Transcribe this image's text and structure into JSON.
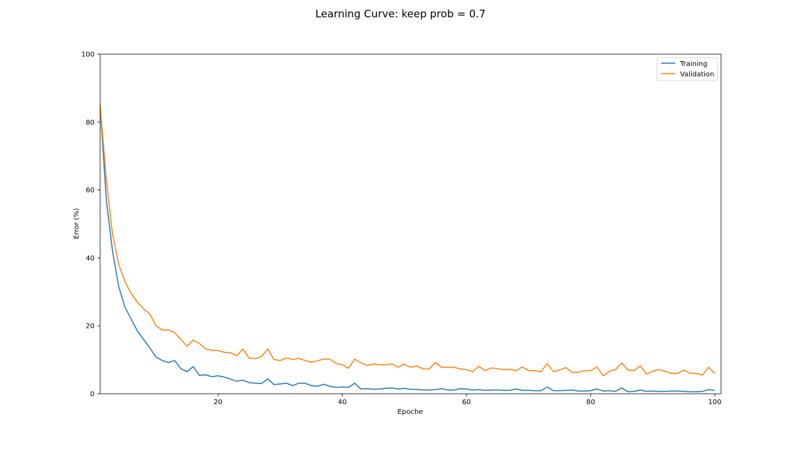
{
  "chart_data": {
    "type": "line",
    "title": "Learning Curve: keep prob = 0.7",
    "xlabel": "Epoche",
    "ylabel": "Error (%)",
    "xlim": [
      1,
      101
    ],
    "ylim": [
      0,
      100
    ],
    "xticks": [
      20,
      40,
      60,
      80,
      100
    ],
    "yticks": [
      0,
      20,
      40,
      60,
      80,
      100
    ],
    "grid": false,
    "legend_position": "top-right",
    "x_start": 1,
    "series": [
      {
        "name": "Training",
        "color": "#1f77b4",
        "values": [
          85.0,
          57.0,
          42.0,
          31.5,
          25.5,
          22.0,
          18.5,
          16.0,
          13.5,
          10.8,
          9.8,
          9.2,
          9.8,
          7.4,
          6.5,
          8.0,
          5.4,
          5.6,
          5.0,
          5.3,
          4.9,
          4.3,
          3.7,
          4.0,
          3.3,
          3.1,
          3.0,
          4.4,
          2.7,
          2.9,
          3.1,
          2.4,
          3.1,
          3.1,
          2.4,
          2.2,
          2.8,
          2.2,
          1.9,
          2.0,
          1.9,
          3.1,
          1.4,
          1.5,
          1.3,
          1.4,
          1.6,
          1.7,
          1.4,
          1.6,
          1.3,
          1.3,
          1.1,
          1.1,
          1.2,
          1.5,
          1.1,
          1.1,
          1.5,
          1.4,
          1.1,
          1.2,
          1.0,
          1.1,
          1.1,
          1.0,
          1.0,
          1.4,
          1.0,
          1.0,
          0.9,
          0.9,
          2.0,
          0.9,
          0.9,
          1.0,
          1.1,
          0.8,
          0.8,
          0.9,
          1.4,
          0.8,
          0.9,
          0.7,
          1.7,
          0.6,
          0.7,
          1.1,
          0.7,
          0.8,
          0.7,
          0.7,
          0.8,
          0.8,
          0.7,
          0.6,
          0.6,
          0.7,
          1.2,
          1.0
        ]
      },
      {
        "name": "Validation",
        "color": "#ff7f0e",
        "values": [
          85.0,
          63.0,
          47.0,
          38.0,
          33.0,
          29.5,
          27.0,
          25.0,
          23.5,
          20.0,
          18.8,
          18.8,
          18.0,
          16.0,
          14.0,
          15.8,
          14.8,
          13.2,
          12.8,
          12.7,
          12.2,
          12.1,
          11.2,
          13.2,
          10.5,
          10.3,
          11.0,
          13.2,
          10.1,
          9.8,
          10.5,
          10.1,
          10.4,
          9.8,
          9.3,
          9.7,
          10.2,
          10.2,
          8.9,
          8.6,
          7.5,
          10.2,
          9.1,
          8.3,
          8.8,
          8.5,
          8.5,
          8.8,
          7.8,
          8.7,
          7.8,
          8.2,
          7.3,
          7.3,
          9.2,
          7.8,
          7.8,
          7.8,
          7.3,
          7.1,
          6.5,
          8.1,
          6.8,
          7.6,
          7.4,
          7.1,
          7.2,
          6.8,
          7.9,
          6.8,
          6.8,
          6.5,
          8.9,
          6.5,
          7.0,
          7.7,
          6.3,
          6.3,
          6.8,
          6.8,
          7.9,
          5.3,
          6.6,
          7.1,
          9.1,
          7.0,
          6.8,
          8.2,
          5.8,
          6.6,
          7.1,
          6.6,
          6.0,
          6.0,
          7.0,
          6.0,
          6.0,
          5.5,
          7.8,
          6.0
        ]
      }
    ]
  }
}
